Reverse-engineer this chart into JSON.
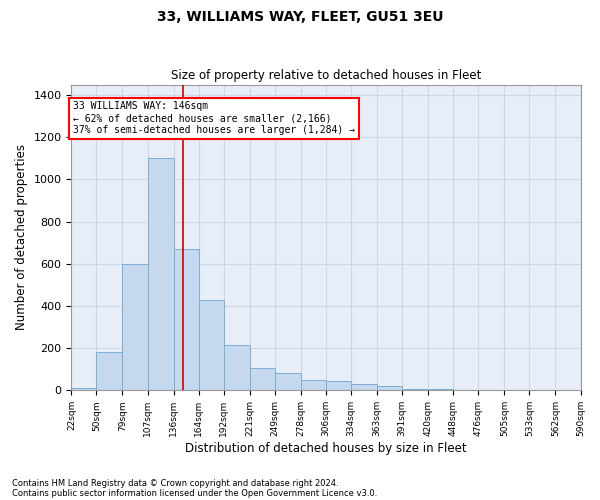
{
  "title": "33, WILLIAMS WAY, FLEET, GU51 3EU",
  "subtitle": "Size of property relative to detached houses in Fleet",
  "xlabel": "Distribution of detached houses by size in Fleet",
  "ylabel": "Number of detached properties",
  "footnote1": "Contains HM Land Registry data © Crown copyright and database right 2024.",
  "footnote2": "Contains public sector information licensed under the Open Government Licence v3.0.",
  "annotation_line1": "33 WILLIAMS WAY: 146sqm",
  "annotation_line2": "← 62% of detached houses are smaller (2,166)",
  "annotation_line3": "37% of semi-detached houses are larger (1,284) →",
  "bar_color": "#c5d8ee",
  "bar_edge_color": "#7bafd4",
  "grid_color": "#ccd8e8",
  "background_color": "#e8eef8",
  "vline_color": "#cc0000",
  "vline_x": 146,
  "bin_edges": [
    22,
    50,
    79,
    107,
    136,
    164,
    192,
    221,
    249,
    278,
    306,
    334,
    363,
    391,
    420,
    448,
    476,
    505,
    533,
    562,
    590
  ],
  "bar_heights": [
    10,
    180,
    600,
    1100,
    670,
    430,
    215,
    105,
    80,
    50,
    45,
    28,
    20,
    5,
    5,
    0,
    0,
    0,
    0,
    0
  ],
  "ylim": [
    0,
    1450
  ],
  "yticks": [
    0,
    200,
    400,
    600,
    800,
    1000,
    1200,
    1400
  ]
}
